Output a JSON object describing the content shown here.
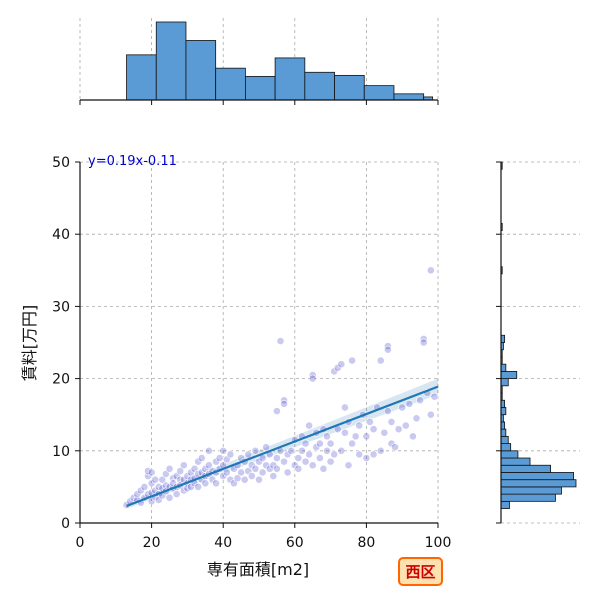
{
  "chart_data": {
    "type": "scatter",
    "xlabel": "専有面積[m2]",
    "ylabel": "賃料[万円]",
    "xlim": [
      0,
      100
    ],
    "ylim": [
      0,
      50
    ],
    "x_ticks": [
      0,
      20,
      40,
      60,
      80,
      100
    ],
    "y_ticks": [
      0,
      10,
      20,
      30,
      40,
      50
    ],
    "grid": true,
    "annotation": "y=0.19x-0.11",
    "badge": "西区",
    "regression": {
      "slope": 0.19,
      "intercept": -0.11,
      "x_range": [
        13,
        100
      ]
    },
    "colors": {
      "points": "#3f3fcc",
      "line": "#1f77b4",
      "histogram": "#5b9bd5",
      "annotation": "#0000cc",
      "badge_fill": "#ffe0b0",
      "badge_border": "#ff6600",
      "badge_text": "#cc0000"
    },
    "x_histogram": {
      "bin_edges": [
        13,
        21.3,
        29.6,
        37.9,
        46.2,
        54.5,
        62.8,
        71.1,
        79.4,
        87.7,
        96,
        98.5
      ],
      "counts": [
        44,
        76,
        58,
        31,
        23,
        41,
        27,
        24,
        14,
        6,
        3
      ]
    },
    "y_histogram": {
      "bin_edges": [
        2,
        3,
        4,
        5,
        6,
        7,
        8,
        9,
        10,
        11,
        12,
        13,
        14,
        15,
        16,
        17,
        18,
        19,
        20,
        21,
        22,
        23,
        24,
        25,
        26
      ],
      "counts": [
        7,
        45,
        50,
        62,
        60,
        41,
        24,
        14,
        8,
        6,
        4,
        3,
        2,
        4,
        3,
        1,
        1,
        6,
        13,
        4,
        1,
        1,
        2,
        3
      ],
      "outliers": [
        [
          35,
          1
        ],
        [
          41,
          1
        ],
        [
          49.5,
          1
        ]
      ]
    },
    "points": [
      [
        13,
        2.5
      ],
      [
        14,
        3
      ],
      [
        15,
        3.5
      ],
      [
        16,
        3.2
      ],
      [
        16,
        4
      ],
      [
        17,
        2.8
      ],
      [
        17,
        4.5
      ],
      [
        18,
        3.5
      ],
      [
        18,
        5
      ],
      [
        19,
        4
      ],
      [
        19,
        6.5
      ],
      [
        19,
        7.2
      ],
      [
        20,
        3
      ],
      [
        20,
        4.2
      ],
      [
        20,
        5.5
      ],
      [
        20,
        7
      ],
      [
        21,
        4.5
      ],
      [
        21,
        6
      ],
      [
        21,
        3.6
      ],
      [
        22,
        5
      ],
      [
        22,
        4
      ],
      [
        22,
        3.2
      ],
      [
        23,
        4.8
      ],
      [
        23,
        6
      ],
      [
        23,
        3.8
      ],
      [
        24,
        5.2
      ],
      [
        24,
        4.4
      ],
      [
        24,
        6.8
      ],
      [
        25,
        5
      ],
      [
        25,
        3.5
      ],
      [
        25,
        7.5
      ],
      [
        26,
        4.8
      ],
      [
        26,
        6.2
      ],
      [
        26,
        5.5
      ],
      [
        27,
        5
      ],
      [
        27,
        4
      ],
      [
        27,
        6.5
      ],
      [
        28,
        6
      ],
      [
        28,
        5.2
      ],
      [
        28,
        7.2
      ],
      [
        29,
        4.5
      ],
      [
        29,
        6
      ],
      [
        29,
        8
      ],
      [
        30,
        5.5
      ],
      [
        30,
        6.5
      ],
      [
        30,
        4.8
      ],
      [
        31,
        7
      ],
      [
        31,
        5
      ],
      [
        31,
        6
      ],
      [
        32,
        6.2
      ],
      [
        32,
        7.5
      ],
      [
        32,
        5.5
      ],
      [
        33,
        6.8
      ],
      [
        33,
        8.5
      ],
      [
        33,
        5
      ],
      [
        34,
        7
      ],
      [
        34,
        6
      ],
      [
        34,
        9
      ],
      [
        35,
        7.5
      ],
      [
        35,
        5.5
      ],
      [
        35,
        6.5
      ],
      [
        36,
        8
      ],
      [
        36,
        6.8
      ],
      [
        36,
        10
      ],
      [
        37,
        7.2
      ],
      [
        37,
        6
      ],
      [
        38,
        8.5
      ],
      [
        38,
        7
      ],
      [
        38,
        5.5
      ],
      [
        39,
        9
      ],
      [
        39,
        7.5
      ],
      [
        40,
        8
      ],
      [
        40,
        6.5
      ],
      [
        40,
        10
      ],
      [
        41,
        7
      ],
      [
        41,
        8.8
      ],
      [
        42,
        6
      ],
      [
        42,
        9.5
      ],
      [
        43,
        7.5
      ],
      [
        43,
        5.5
      ],
      [
        44,
        8
      ],
      [
        44,
        6.2
      ],
      [
        45,
        9
      ],
      [
        45,
        7
      ],
      [
        46,
        8.5
      ],
      [
        46,
        6
      ],
      [
        47,
        9.5
      ],
      [
        47,
        7.2
      ],
      [
        48,
        8
      ],
      [
        48,
        6.5
      ],
      [
        49,
        10
      ],
      [
        49,
        7.5
      ],
      [
        50,
        8.5
      ],
      [
        50,
        6
      ],
      [
        51,
        9
      ],
      [
        51,
        7
      ],
      [
        52,
        10.5
      ],
      [
        52,
        8
      ],
      [
        53,
        7.5
      ],
      [
        53,
        9.5
      ],
      [
        54,
        8
      ],
      [
        54,
        6.5
      ],
      [
        55,
        9
      ],
      [
        55,
        7.5
      ],
      [
        55,
        15.5
      ],
      [
        56,
        25.2
      ],
      [
        56,
        10
      ],
      [
        57,
        17
      ],
      [
        57,
        16.5
      ],
      [
        57,
        8.5
      ],
      [
        58,
        9.5
      ],
      [
        58,
        7
      ],
      [
        59,
        10
      ],
      [
        60,
        8
      ],
      [
        60,
        11.5
      ],
      [
        61,
        9
      ],
      [
        61,
        7.5
      ],
      [
        62,
        10
      ],
      [
        62,
        12
      ],
      [
        63,
        8.5
      ],
      [
        63,
        11
      ],
      [
        64,
        9.5
      ],
      [
        64,
        13.5
      ],
      [
        65,
        20.5
      ],
      [
        65,
        20
      ],
      [
        65,
        8
      ],
      [
        66,
        10.5
      ],
      [
        66,
        12.5
      ],
      [
        67,
        9
      ],
      [
        67,
        11
      ],
      [
        68,
        13
      ],
      [
        68,
        7.5
      ],
      [
        69,
        10
      ],
      [
        69,
        12
      ],
      [
        70,
        8.5
      ],
      [
        70,
        11
      ],
      [
        71,
        21
      ],
      [
        71,
        9.5
      ],
      [
        72,
        21.5
      ],
      [
        72,
        13
      ],
      [
        73,
        10
      ],
      [
        73,
        22
      ],
      [
        74,
        12.5
      ],
      [
        74,
        16
      ],
      [
        75,
        8
      ],
      [
        75,
        14
      ],
      [
        76,
        22.5
      ],
      [
        76,
        11
      ],
      [
        77,
        12
      ],
      [
        78,
        9.5
      ],
      [
        78,
        13.5
      ],
      [
        79,
        15
      ],
      [
        80,
        9
      ],
      [
        80,
        12
      ],
      [
        81,
        14
      ],
      [
        82,
        9.5
      ],
      [
        82,
        13
      ],
      [
        83,
        16
      ],
      [
        84,
        22.5
      ],
      [
        84,
        10
      ],
      [
        85,
        12.5
      ],
      [
        86,
        15.5
      ],
      [
        86,
        24.5
      ],
      [
        86,
        24
      ],
      [
        87,
        11
      ],
      [
        87,
        14
      ],
      [
        88,
        10.5
      ],
      [
        89,
        13
      ],
      [
        90,
        16
      ],
      [
        91,
        13.5
      ],
      [
        92,
        16.5
      ],
      [
        93,
        12
      ],
      [
        94,
        14.5
      ],
      [
        95,
        17
      ],
      [
        96,
        25.5
      ],
      [
        96,
        25
      ],
      [
        97,
        18
      ],
      [
        98,
        15
      ],
      [
        98,
        35
      ],
      [
        99,
        17.5
      ]
    ]
  }
}
